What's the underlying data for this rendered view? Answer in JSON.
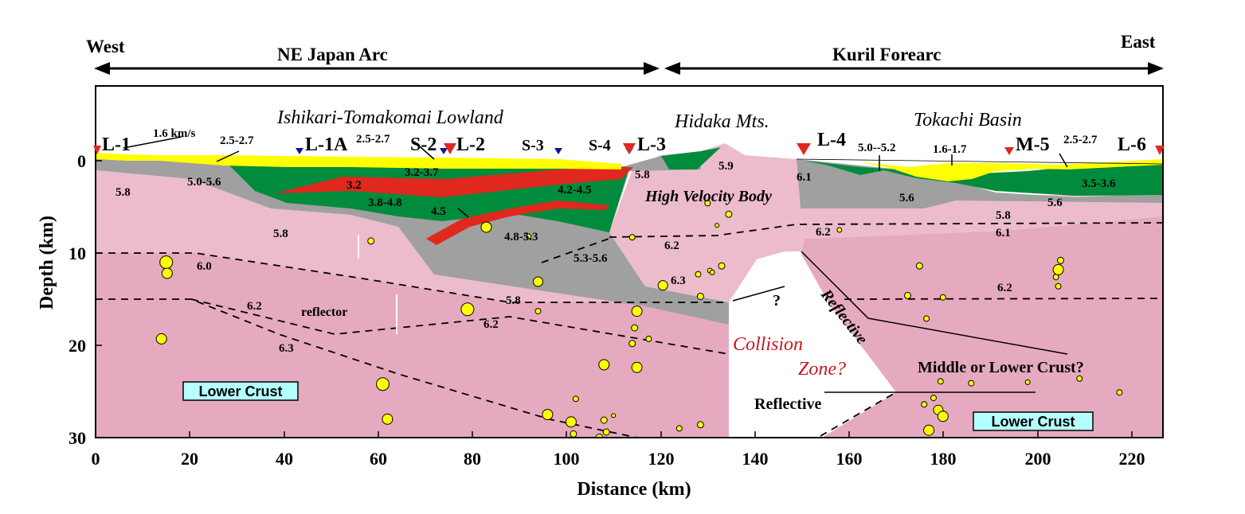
{
  "header": {
    "west": "West",
    "east": "East",
    "ne_japan_arc": "NE Japan Arc",
    "kuril_forearc": "Kuril Forearc"
  },
  "axes": {
    "xlabel": "Distance (km)",
    "ylabel": "Depth (km)",
    "x_ticks": [
      "0",
      "20",
      "40",
      "60",
      "80",
      "100",
      "120",
      "140",
      "160",
      "180",
      "200",
      "220"
    ],
    "y_ticks": [
      "0",
      "10",
      "20",
      "30"
    ]
  },
  "regions": {
    "lowland": "Ishikari-Tomakomai Lowland",
    "hidaka": "Hidaka Mts.",
    "tokachi": "Tokachi Basin"
  },
  "stations": {
    "L1": "L-1",
    "L1A": "L-1A",
    "S2": "S-2",
    "L2": "L-2",
    "S3": "S-3",
    "S4": "S-4",
    "L3": "L-3",
    "L4": "L-4",
    "M5": "M-5",
    "L6": "L-6"
  },
  "velocities": {
    "v16": "1.6 km/s",
    "v2527a": "2.5-2.7",
    "v2527b": "2.5-2.7",
    "v2527c": "2.5-2.7",
    "v5056": "5.0-5.6",
    "v3237": "3.2-3.7",
    "v32": "3.2",
    "v3848": "3.8-4.8",
    "v4245": "4.2-4.5",
    "v45": "4.5",
    "v4853": "4.8-5.3",
    "v5356": "5.3-5.6",
    "v58a": "5.8",
    "v58b": "5.8",
    "v58c": "5.8",
    "v58d": "5.8",
    "v58e": "5.8",
    "v59": "5.9",
    "v61a": "6.1",
    "v61b": "6.1",
    "v5052": "5.0--5.2",
    "v1617": "1.6-1.7",
    "v56a": "5.6",
    "v56b": "5.6",
    "v3536": "3.5-3.6",
    "v60": "6.0",
    "v62a": "6.2",
    "v62b": "6.2",
    "v62c": "6.2",
    "v62d": "6.2",
    "v62e": "6.2",
    "v63a": "6.3",
    "v63b": "6.3"
  },
  "labels": {
    "high_velocity_body": "High Velocity Body",
    "reflector": "reflector",
    "question": "?",
    "reflective_diag": "Reflective",
    "reflective_lower": "Reflective",
    "collision": "Collision",
    "zone": "Zone?",
    "middle_lower": "Middle or Lower Crust?",
    "lower_crust_left": "Lower Crust",
    "lower_crust_right": "Lower Crust"
  },
  "colors": {
    "sediment_yellow": "#ffff00",
    "green_layer": "#008c3c",
    "red_layer": "#e0281e",
    "gray_layer": "#a0a0a0",
    "upper_crust_pink": "#ecbccc",
    "lower_crust_pink": "#e6aac0",
    "earthquake": "#ffff00",
    "station_red": "#e0281e",
    "station_blue": "#1c0f8c",
    "box_cyan": "#b4ffff"
  },
  "earthquakes": [
    {
      "km": 15,
      "depth": 11.0,
      "s": 1.6
    },
    {
      "km": 15.2,
      "depth": 12.2,
      "s": 1.3
    },
    {
      "km": 14,
      "depth": 19.3,
      "s": 1.3
    },
    {
      "km": 61,
      "depth": 24.2,
      "s": 1.6
    },
    {
      "km": 62,
      "depth": 28,
      "s": 1.3
    },
    {
      "km": 58.5,
      "depth": 8.7,
      "s": 0.8
    },
    {
      "km": 79,
      "depth": 16.1,
      "s": 1.6
    },
    {
      "km": 83,
      "depth": 7.2,
      "s": 1.3
    },
    {
      "km": 94,
      "depth": 13.1,
      "s": 1.2
    },
    {
      "km": 94,
      "depth": 16.3,
      "s": 0.7
    },
    {
      "km": 92,
      "depth": 8.2,
      "s": 0.6
    },
    {
      "km": 96,
      "depth": 27.5,
      "s": 1.3
    },
    {
      "km": 101,
      "depth": 28.3,
      "s": 1.3
    },
    {
      "km": 102,
      "depth": 25.8,
      "s": 0.7
    },
    {
      "km": 101.5,
      "depth": 29.6,
      "s": 0.8
    },
    {
      "km": 108,
      "depth": 22.1,
      "s": 1.3
    },
    {
      "km": 108,
      "depth": 28.1,
      "s": 0.8
    },
    {
      "km": 108.5,
      "depth": 29.4,
      "s": 0.8
    },
    {
      "km": 107,
      "depth": 30,
      "s": 0.9
    },
    {
      "km": 110,
      "depth": 27.6,
      "s": 0.5
    },
    {
      "km": 114,
      "depth": 8.3,
      "s": 0.7
    },
    {
      "km": 115,
      "depth": 16.3,
      "s": 1.3
    },
    {
      "km": 114.5,
      "depth": 18.1,
      "s": 0.8
    },
    {
      "km": 114,
      "depth": 19.8,
      "s": 0.8
    },
    {
      "km": 115,
      "depth": 22.4,
      "s": 1.3
    },
    {
      "km": 117.5,
      "depth": 19.3,
      "s": 0.7
    },
    {
      "km": 120.5,
      "depth": 13.5,
      "s": 1.2
    },
    {
      "km": 124,
      "depth": 29.0,
      "s": 0.7
    },
    {
      "km": 128,
      "depth": 12.3,
      "s": 0.7
    },
    {
      "km": 128.5,
      "depth": 14.7,
      "s": 0.8
    },
    {
      "km": 130,
      "depth": 4.6,
      "s": 0.7
    },
    {
      "km": 130.5,
      "depth": 11.9,
      "s": 0.6
    },
    {
      "km": 131,
      "depth": 12.1,
      "s": 0.6
    },
    {
      "km": 132,
      "depth": 7.0,
      "s": 0.5
    },
    {
      "km": 134.5,
      "depth": 5.8,
      "s": 0.8
    },
    {
      "km": 133,
      "depth": 11.4,
      "s": 0.8
    },
    {
      "km": 128.5,
      "depth": 28.6,
      "s": 0.8
    },
    {
      "km": 158,
      "depth": 7.5,
      "s": 0.6
    },
    {
      "km": 172.5,
      "depth": 14.6,
      "s": 0.8
    },
    {
      "km": 175,
      "depth": 11.4,
      "s": 0.8
    },
    {
      "km": 176.5,
      "depth": 17.1,
      "s": 0.7
    },
    {
      "km": 176,
      "depth": 26.4,
      "s": 0.7
    },
    {
      "km": 178,
      "depth": 25.7,
      "s": 0.7
    },
    {
      "km": 179,
      "depth": 27.0,
      "s": 1.2
    },
    {
      "km": 180,
      "depth": 27.7,
      "s": 1.3
    },
    {
      "km": 180,
      "depth": 14.8,
      "s": 0.7
    },
    {
      "km": 179.5,
      "depth": 23.9,
      "s": 0.7
    },
    {
      "km": 177,
      "depth": 29.2,
      "s": 1.3
    },
    {
      "km": 186,
      "depth": 24.1,
      "s": 0.7
    },
    {
      "km": 198,
      "depth": 24.0,
      "s": 0.6
    },
    {
      "km": 204.5,
      "depth": 11.8,
      "s": 1.3
    },
    {
      "km": 205,
      "depth": 10.8,
      "s": 0.8
    },
    {
      "km": 204,
      "depth": 12.6,
      "s": 0.7
    },
    {
      "km": 204.5,
      "depth": 13.6,
      "s": 0.7
    },
    {
      "km": 209,
      "depth": 23.6,
      "s": 0.7
    },
    {
      "km": 217.5,
      "depth": 25.1,
      "s": 0.7
    }
  ]
}
